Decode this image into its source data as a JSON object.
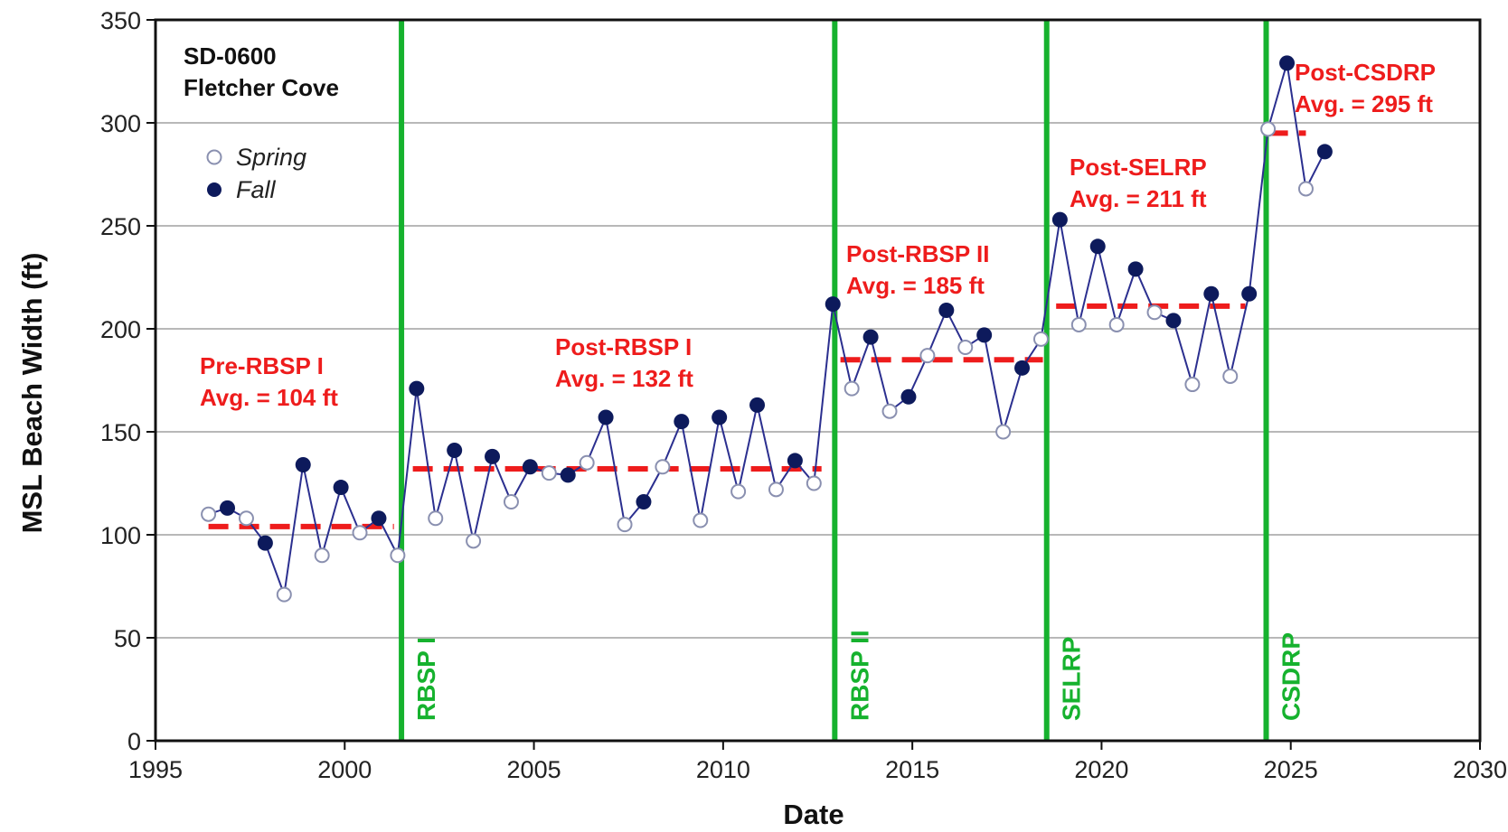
{
  "chart_data": {
    "type": "scatter",
    "station": "SD-0600",
    "location": "Fletcher Cove",
    "xlabel": "Date",
    "ylabel": "MSL Beach Width (ft)",
    "xlim": [
      1995,
      2030
    ],
    "ylim": [
      0,
      350
    ],
    "x_ticks": [
      1995,
      2000,
      2005,
      2010,
      2015,
      2020,
      2025,
      2030
    ],
    "y_ticks": [
      0,
      50,
      100,
      150,
      200,
      250,
      300,
      350
    ],
    "grid": "horizontal",
    "legend": {
      "position": "top-left",
      "entries": [
        "Spring",
        "Fall"
      ]
    },
    "colors": {
      "line": "#2b2f8f",
      "fall": "#0d1a5c",
      "spring_edge": "#8a90b0",
      "average": "#ee1c1c",
      "event": "#16b22e",
      "grid": "#b8b8b8"
    },
    "series": [
      {
        "name": "Spring",
        "marker": "open-circle",
        "points": [
          [
            1996.4,
            110
          ],
          [
            1997.4,
            108
          ],
          [
            1998.4,
            71
          ],
          [
            1999.4,
            90
          ],
          [
            2000.4,
            101
          ],
          [
            2001.4,
            90
          ],
          [
            2002.4,
            108
          ],
          [
            2003.4,
            97
          ],
          [
            2004.4,
            116
          ],
          [
            2005.4,
            130
          ],
          [
            2006.4,
            135
          ],
          [
            2007.4,
            105
          ],
          [
            2008.4,
            133
          ],
          [
            2009.4,
            107
          ],
          [
            2010.4,
            121
          ],
          [
            2011.4,
            122
          ],
          [
            2012.4,
            125
          ],
          [
            2013.4,
            171
          ],
          [
            2014.4,
            160
          ],
          [
            2015.4,
            187
          ],
          [
            2016.4,
            191
          ],
          [
            2017.4,
            150
          ],
          [
            2018.4,
            195
          ],
          [
            2019.4,
            202
          ],
          [
            2020.4,
            202
          ],
          [
            2021.4,
            208
          ],
          [
            2022.4,
            173
          ],
          [
            2023.4,
            177
          ],
          [
            2024.4,
            297
          ],
          [
            2025.4,
            268
          ]
        ]
      },
      {
        "name": "Fall",
        "marker": "filled-circle",
        "points": [
          [
            1996.9,
            113
          ],
          [
            1997.9,
            96
          ],
          [
            1998.9,
            134
          ],
          [
            1999.9,
            123
          ],
          [
            2000.9,
            108
          ],
          [
            2001.9,
            171
          ],
          [
            2002.9,
            141
          ],
          [
            2003.9,
            138
          ],
          [
            2004.9,
            133
          ],
          [
            2005.9,
            129
          ],
          [
            2006.9,
            157
          ],
          [
            2007.9,
            116
          ],
          [
            2008.9,
            155
          ],
          [
            2009.9,
            157
          ],
          [
            2010.9,
            163
          ],
          [
            2011.9,
            136
          ],
          [
            2012.9,
            212
          ],
          [
            2013.9,
            196
          ],
          [
            2014.9,
            167
          ],
          [
            2015.9,
            209
          ],
          [
            2016.9,
            197
          ],
          [
            2017.9,
            181
          ],
          [
            2018.9,
            253
          ],
          [
            2019.9,
            240
          ],
          [
            2020.9,
            229
          ],
          [
            2021.9,
            204
          ],
          [
            2022.9,
            217
          ],
          [
            2023.9,
            217
          ],
          [
            2024.9,
            329
          ],
          [
            2025.9,
            286
          ]
        ]
      }
    ],
    "events": [
      {
        "label": "RBSP I",
        "x": 2001.5
      },
      {
        "label": "RBSP II",
        "x": 2012.95
      },
      {
        "label": "SELRP",
        "x": 2018.55
      },
      {
        "label": "CSDRP",
        "x": 2024.35
      }
    ],
    "averages": [
      {
        "name": "Pre-RBSP I",
        "text": "Avg. = 104  ft",
        "value": 104,
        "x_start": 1996.4,
        "x_end": 2001.3
      },
      {
        "name": "Post-RBSP I",
        "text": "Avg. = 132  ft",
        "value": 132,
        "x_start": 2001.8,
        "x_end": 2012.6
      },
      {
        "name": "Post-RBSP II",
        "text": "Avg. = 185  ft",
        "value": 185,
        "x_start": 2013.1,
        "x_end": 2018.45
      },
      {
        "name": "Post-SELRP",
        "text": "Avg. = 211  ft",
        "value": 211,
        "x_start": 2018.8,
        "x_end": 2023.8
      },
      {
        "name": "Post-CSDRP",
        "text": "Avg. = 295 ft",
        "value": 295,
        "x_start": 2024.4,
        "x_end": 2025.4
      }
    ]
  }
}
